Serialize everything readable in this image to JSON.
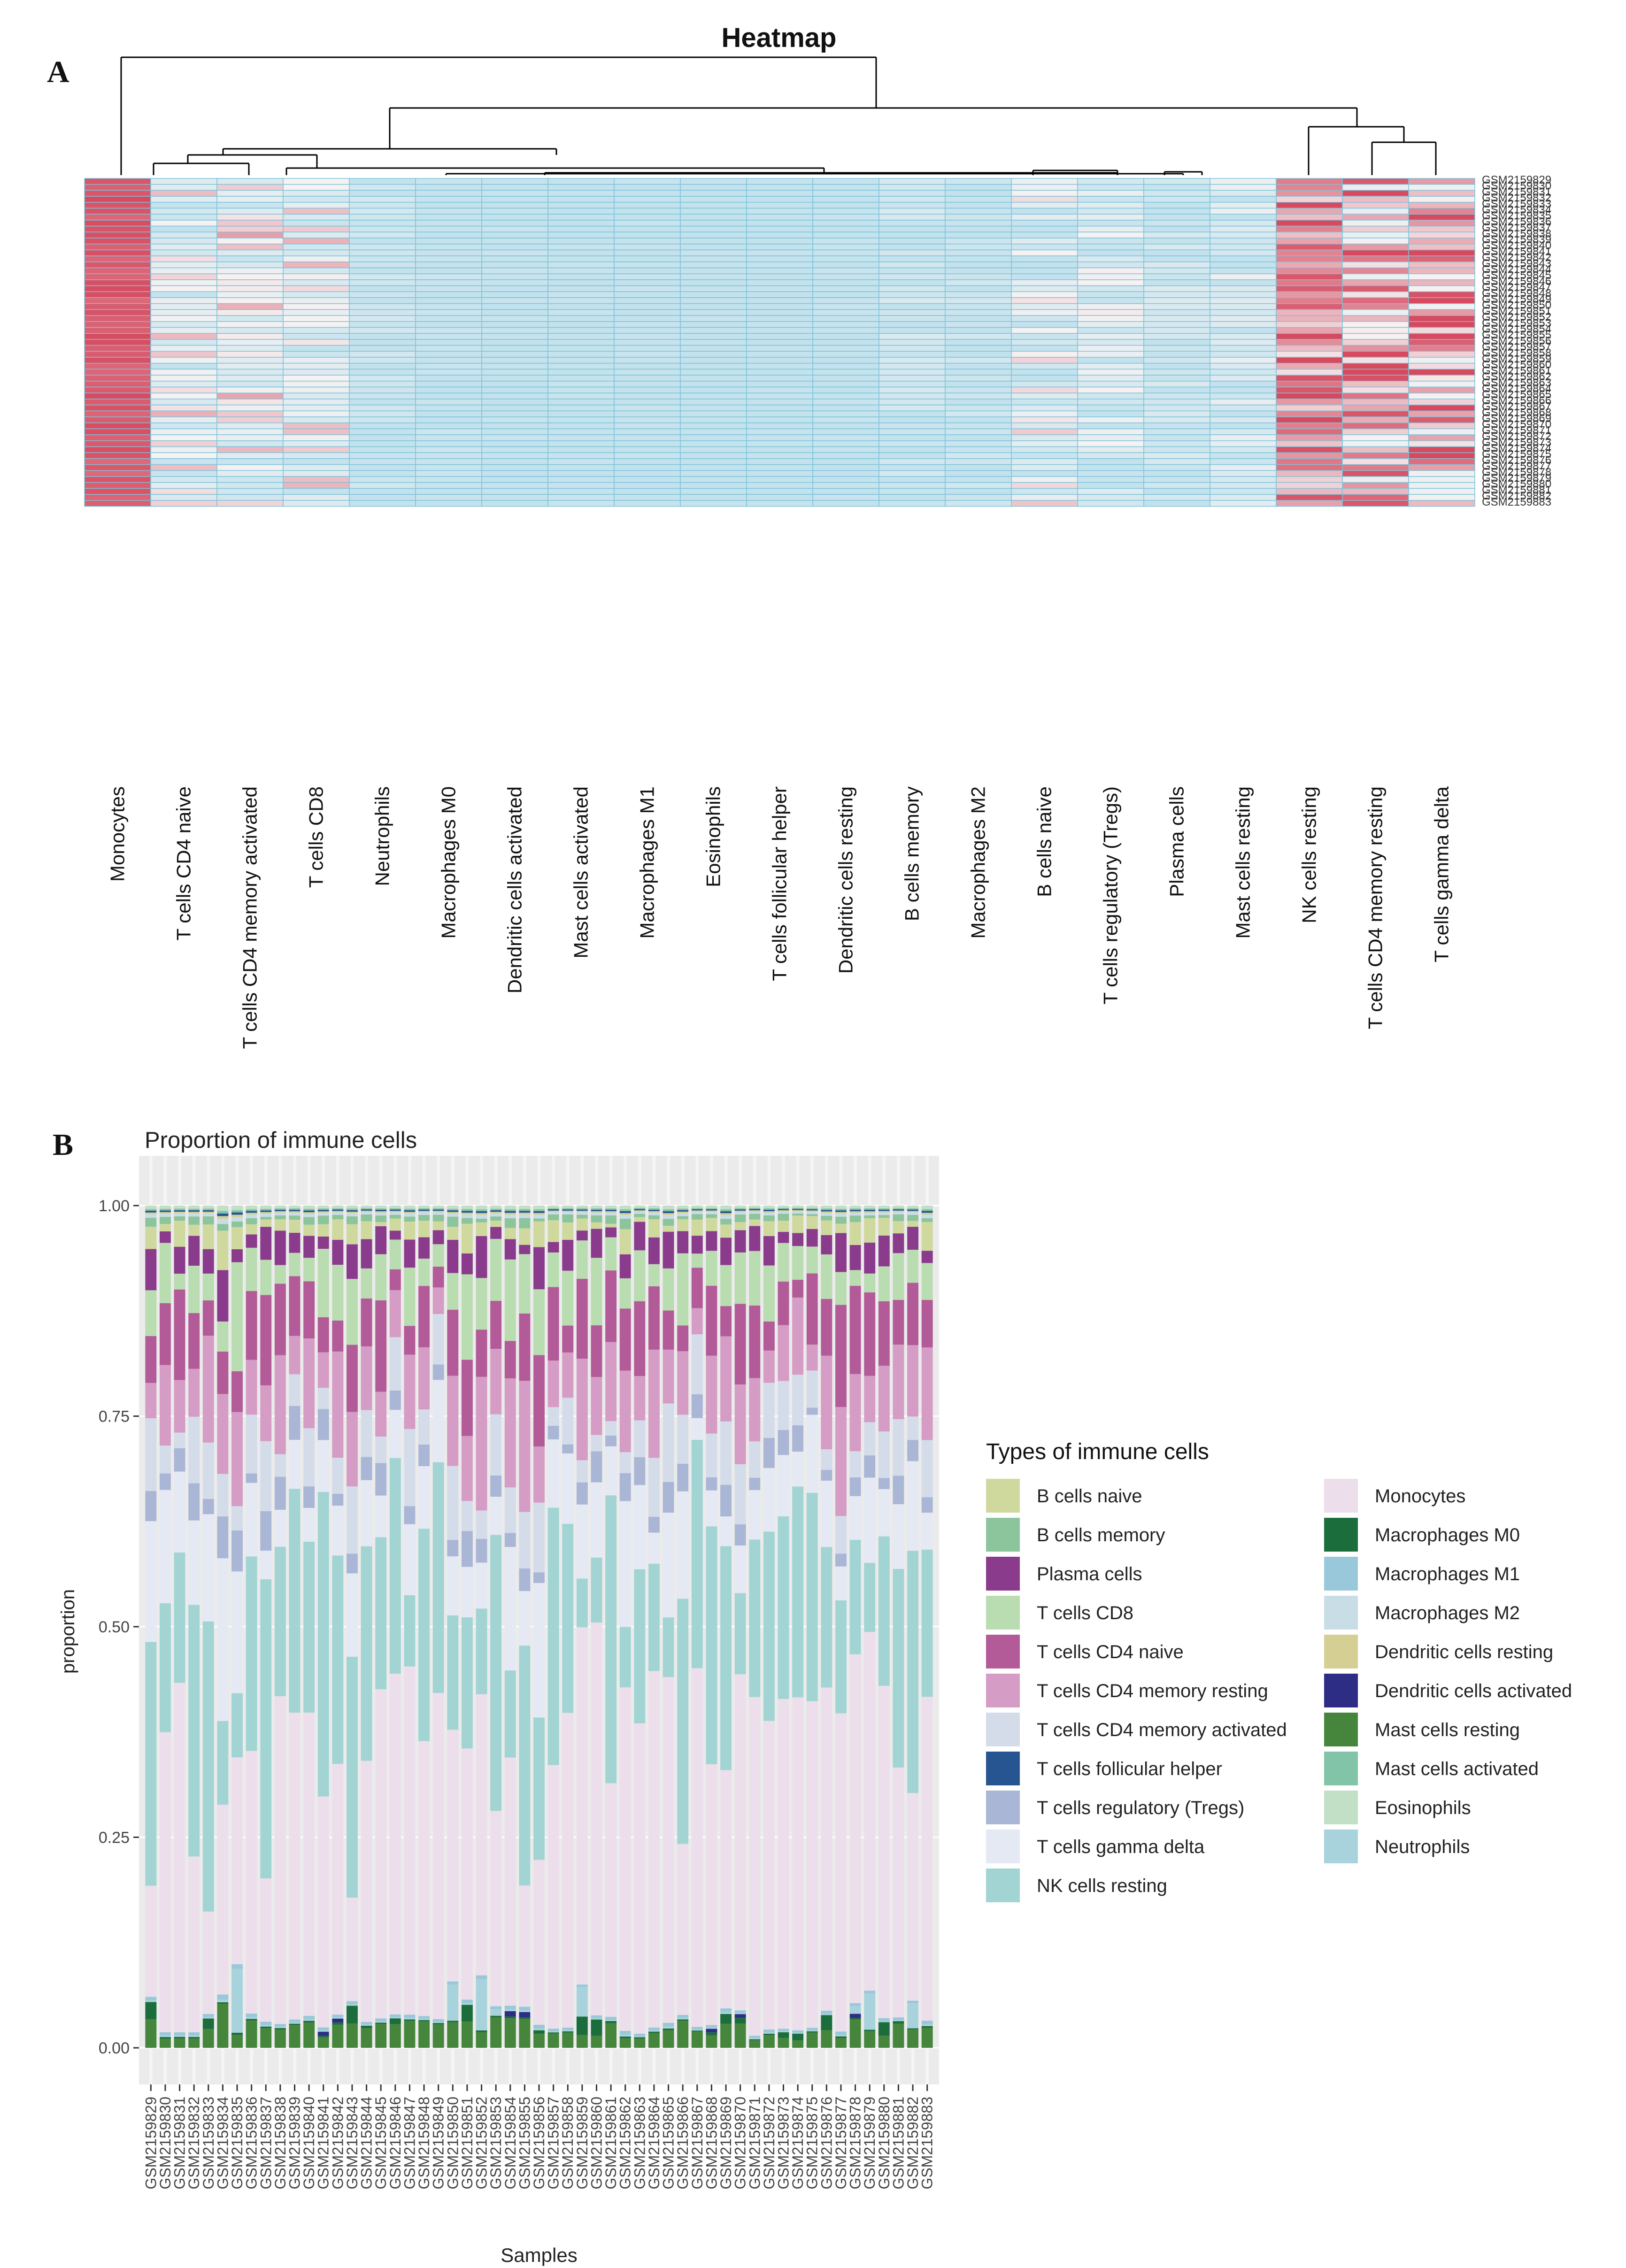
{
  "panels": {
    "a": "A",
    "b": "B"
  },
  "colors": {
    "hm_low": "#c3e2ed",
    "hm_mid": "#f7f2f2",
    "hm_high": "#d8495e",
    "hm_border": "#7cc3d9",
    "pb_bg": "#ebebeb",
    "pb_stripe": "#f5f5f5",
    "dendro": "#000000"
  },
  "chart_data": [
    {
      "type": "heatmap",
      "title": "Heatmap",
      "columns": [
        "Monocytes",
        "T cells CD4 naive",
        "T cells CD4 memory activated",
        "T cells CD8",
        "Neutrophils",
        "Macrophages M0",
        "Dendritic cells activated",
        "Mast cells activated",
        "Macrophages M1",
        "Eosinophils",
        "T cells follicular helper",
        "Dendritic cells resting",
        "B cells memory",
        "Macrophages M2",
        "B cells naive",
        "T cells regulatory (Tregs)",
        "Plasma cells",
        "Mast cells resting",
        "NK cells resting",
        "T cells CD4 memory resting",
        "T cells gamma delta"
      ],
      "rows": [
        "GSM2159829",
        "GSM2159830",
        "GSM2159831",
        "GSM2159832",
        "GSM2159833",
        "GSM2159834",
        "GSM2159835",
        "GSM2159836",
        "GSM2159837",
        "GSM2159838",
        "GSM2159839",
        "GSM2159840",
        "GSM2159841",
        "GSM2159842",
        "GSM2159843",
        "GSM2159844",
        "GSM2159845",
        "GSM2159846",
        "GSM2159847",
        "GSM2159848",
        "GSM2159849",
        "GSM2159850",
        "GSM2159851",
        "GSM2159852",
        "GSM2159853",
        "GSM2159854",
        "GSM2159855",
        "GSM2159856",
        "GSM2159857",
        "GSM2159858",
        "GSM2159859",
        "GSM2159860",
        "GSM2159861",
        "GSM2159862",
        "GSM2159863",
        "GSM2159864",
        "GSM2159865",
        "GSM2159866",
        "GSM2159867",
        "GSM2159868",
        "GSM2159869",
        "GSM2159870",
        "GSM2159871",
        "GSM2159872",
        "GSM2159873",
        "GSM2159874",
        "GSM2159875",
        "GSM2159876",
        "GSM2159877",
        "GSM2159878",
        "GSM2159879",
        "GSM2159880",
        "GSM2159881",
        "GSM2159882",
        "GSM2159883"
      ],
      "column_dendrogram": "hierarchical clustering of cell types (top)",
      "color_scale": [
        "low (light blue)",
        "mid (white)",
        "high (red)"
      ]
    },
    {
      "type": "stacked_bar",
      "title": "Proportion of immune cells",
      "xlabel": "Samples",
      "ylabel": "proportion",
      "ylim": [
        0,
        1
      ],
      "yticks": [
        "0.00",
        "0.25",
        "0.50",
        "0.75",
        "1.00"
      ],
      "legend_title": "Types of immune cells",
      "legend_position": "right",
      "categories": [
        "GSM2159829",
        "GSM2159830",
        "GSM2159831",
        "GSM2159832",
        "GSM2159833",
        "GSM2159834",
        "GSM2159835",
        "GSM2159836",
        "GSM2159837",
        "GSM2159838",
        "GSM2159839",
        "GSM2159840",
        "GSM2159841",
        "GSM2159842",
        "GSM2159843",
        "GSM2159844",
        "GSM2159845",
        "GSM2159846",
        "GSM2159847",
        "GSM2159848",
        "GSM2159849",
        "GSM2159850",
        "GSM2159851",
        "GSM2159852",
        "GSM2159853",
        "GSM2159854",
        "GSM2159855",
        "GSM2159856",
        "GSM2159857",
        "GSM2159858",
        "GSM2159859",
        "GSM2159860",
        "GSM2159861",
        "GSM2159862",
        "GSM2159863",
        "GSM2159864",
        "GSM2159865",
        "GSM2159866",
        "GSM2159867",
        "GSM2159868",
        "GSM2159869",
        "GSM2159870",
        "GSM2159871",
        "GSM2159872",
        "GSM2159873",
        "GSM2159874",
        "GSM2159875",
        "GSM2159876",
        "GSM2159877",
        "GSM2159878",
        "GSM2159879",
        "GSM2159880",
        "GSM2159881",
        "GSM2159882",
        "GSM2159883"
      ],
      "cell_types": [
        {
          "name": "B cells naive",
          "color": "#cfd99e"
        },
        {
          "name": "B cells memory",
          "color": "#8cc49c"
        },
        {
          "name": "Plasma cells",
          "color": "#8a3b8c"
        },
        {
          "name": "T cells CD8",
          "color": "#b9dcb1"
        },
        {
          "name": "T cells CD4 naive",
          "color": "#b25b98"
        },
        {
          "name": "T cells CD4 memory resting",
          "color": "#d59cc5"
        },
        {
          "name": "T cells CD4 memory activated",
          "color": "#d4dcea"
        },
        {
          "name": "T cells follicular helper",
          "color": "#275591"
        },
        {
          "name": "T cells regulatory (Tregs)",
          "color": "#aab6d6"
        },
        {
          "name": "T cells gamma delta",
          "color": "#e5e9f3"
        },
        {
          "name": "NK cells resting",
          "color": "#a2d4d4"
        },
        {
          "name": "Monocytes",
          "color": "#ecdfeb"
        },
        {
          "name": "Macrophages M0",
          "color": "#1b6e3c"
        },
        {
          "name": "Macrophages M1",
          "color": "#98c8d9"
        },
        {
          "name": "Macrophages M2",
          "color": "#c9dde6"
        },
        {
          "name": "Dendritic cells resting",
          "color": "#d5cf94"
        },
        {
          "name": "Dendritic cells activated",
          "color": "#2e2d86"
        },
        {
          "name": "Mast cells resting",
          "color": "#46863c"
        },
        {
          "name": "Mast cells activated",
          "color": "#82c4a8"
        },
        {
          "name": "Eosinophils",
          "color": "#c2e0c6"
        },
        {
          "name": "Neutrophils",
          "color": "#a9d3dc"
        }
      ],
      "series_note": "Per-sample stacked proportions (approx.). Monocytes dominate the lower stack (approx. 0.15-0.60), NK cells resting mid (approx. 0.10-0.50), with smaller contributions from T cells, Mast cells, Macrophages and Plasma cells near the top and bottom."
    }
  ]
}
